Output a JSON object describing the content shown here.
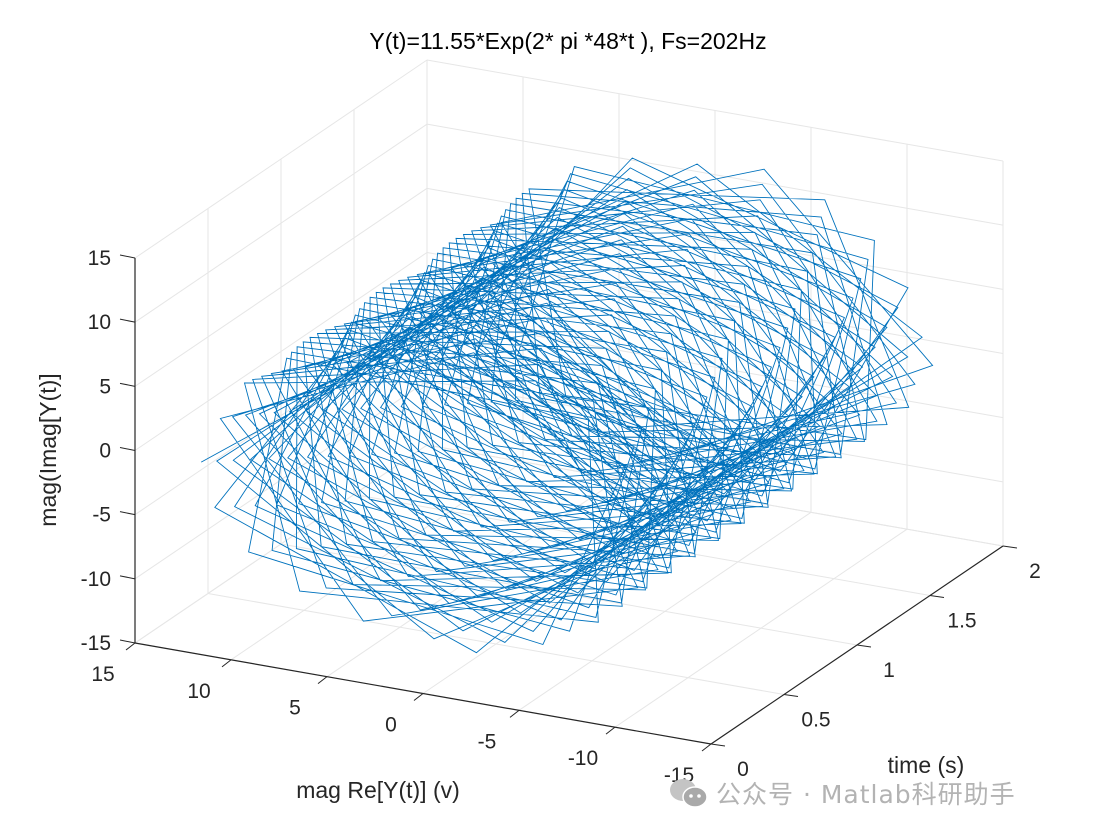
{
  "chart_data": {
    "type": "line3d",
    "title": "Y(t)=11.55*Exp(2* pi *48*t ),  Fs=202Hz",
    "xlabel": "mag Re[Y(t)] (v)",
    "ylabel": "time (s)",
    "zlabel": "mag(Imag[Y(t)]",
    "x_ticks": [
      "15",
      "10",
      "5",
      "0",
      "-5",
      "-10",
      "-15"
    ],
    "x_tick_values": [
      15,
      10,
      5,
      0,
      -5,
      -10,
      -15
    ],
    "y_ticks": [
      "0",
      "0.5",
      "1",
      "1.5",
      "2"
    ],
    "y_tick_values": [
      0,
      0.5,
      1,
      1.5,
      2
    ],
    "z_ticks": [
      "15",
      "10",
      "5",
      "0",
      "-5",
      "-10",
      "-15"
    ],
    "z_tick_values": [
      15,
      10,
      5,
      0,
      -5,
      -10,
      -15
    ],
    "xlim": [
      -15,
      15
    ],
    "ylim": [
      0,
      2
    ],
    "zlim": [
      -15,
      15
    ],
    "grid": true,
    "series": [
      {
        "name": "Y(t)",
        "amplitude": 11.55,
        "frequency_hz": 48,
        "sample_rate_hz": 202,
        "t_start": 0,
        "t_end": 2,
        "x_expr": "11.55*cos(2*pi*48*t)",
        "z_expr": "11.55*sin(2*pi*48*t)",
        "color": "#0072BD"
      }
    ]
  },
  "watermark": {
    "text": "公众号 · Matlab科研助手",
    "icon": "wechat-icon"
  }
}
